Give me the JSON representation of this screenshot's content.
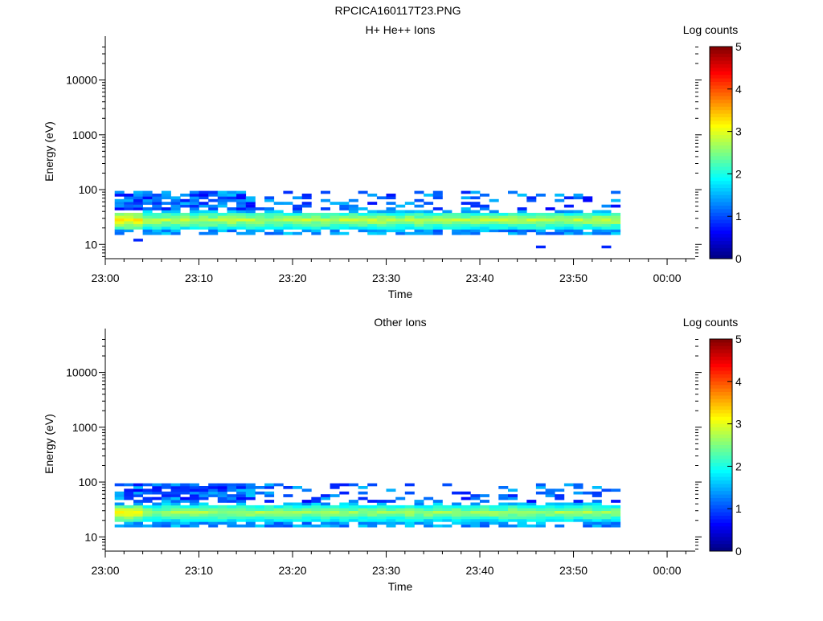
{
  "figure_title": "RPCICA160117T23.PNG",
  "chart_data": [
    {
      "type": "heatmap",
      "title": "H+ He++ Ions",
      "xlabel": "Time",
      "ylabel": "Energy (eV)",
      "x_ticks": [
        "23:00",
        "23:10",
        "23:20",
        "23:30",
        "23:40",
        "23:50",
        "00:00"
      ],
      "y_ticks": [
        "10",
        "100",
        "1000",
        "10000"
      ],
      "y_scale": "log",
      "xlim": [
        "23:00",
        "00:03"
      ],
      "ylim": [
        5.5,
        45000
      ],
      "colorbar": {
        "label": "Log counts",
        "ticks": [
          "0",
          "1",
          "2",
          "3",
          "4",
          "5"
        ],
        "range": [
          0,
          5
        ],
        "colormap": "jet"
      },
      "data_time_range": [
        "23:01",
        "23:55"
      ],
      "energy_range_eV": [
        15,
        95
      ],
      "peak_band_eV": [
        22,
        35
      ],
      "peak_log_counts": 3.0,
      "sparse_upper_band_eV": [
        40,
        95
      ],
      "isolated_low_energy_points": [
        {
          "time": "23:03",
          "energy": 12
        },
        {
          "time": "23:46",
          "energy": 9
        },
        {
          "time": "23:53",
          "energy": 9
        }
      ]
    },
    {
      "type": "heatmap",
      "title": "Other Ions",
      "xlabel": "Time",
      "ylabel": "Energy (eV)",
      "x_ticks": [
        "23:00",
        "23:10",
        "23:20",
        "23:30",
        "23:40",
        "23:50",
        "00:00"
      ],
      "y_ticks": [
        "10",
        "100",
        "1000",
        "10000"
      ],
      "y_scale": "log",
      "xlim": [
        "23:00",
        "00:03"
      ],
      "ylim": [
        5.5,
        45000
      ],
      "colorbar": {
        "label": "Log counts",
        "ticks": [
          "0",
          "1",
          "2",
          "3",
          "4",
          "5"
        ],
        "range": [
          0,
          5
        ],
        "colormap": "jet"
      },
      "data_time_range": [
        "23:01",
        "23:55"
      ],
      "energy_range_eV": [
        15,
        95
      ],
      "peak_band_eV": [
        22,
        35
      ],
      "peak_log_counts": 2.9,
      "sparse_upper_band_eV": [
        40,
        95
      ],
      "isolated_low_energy_points": []
    }
  ]
}
